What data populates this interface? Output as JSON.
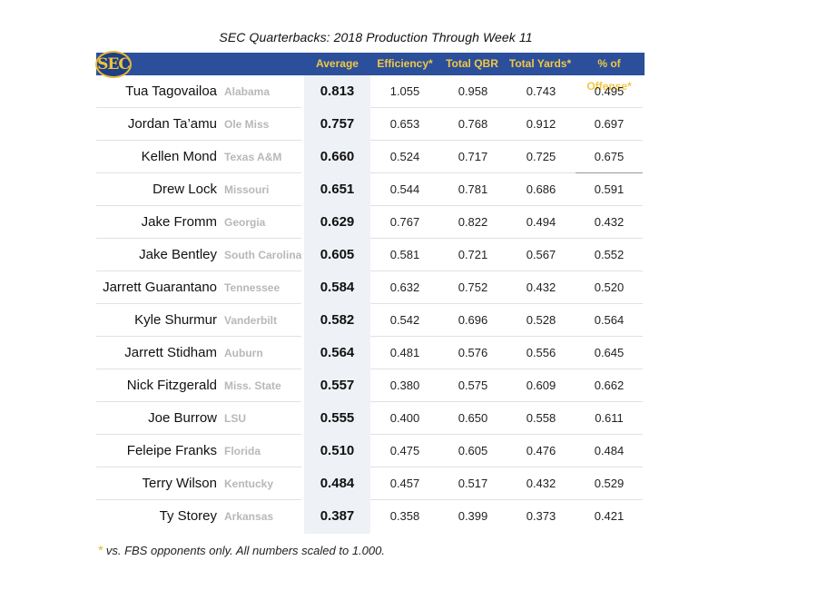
{
  "chart_data": {
    "type": "table",
    "title": "SEC Quarterbacks: 2018 Production Through Week 11",
    "logo_text": "SEC",
    "columns": [
      "Average",
      "Efficiency*",
      "Total QBR",
      "Total Yards*",
      "% of Offense*"
    ],
    "rows": [
      {
        "player": "Tua Tagovailoa",
        "school": "Alabama",
        "average": "0.813",
        "efficiency": "1.055",
        "qbr": "0.958",
        "yards": "0.743",
        "offense": "0.495"
      },
      {
        "player": "Jordan Ta’amu",
        "school": "Ole Miss",
        "average": "0.757",
        "efficiency": "0.653",
        "qbr": "0.768",
        "yards": "0.912",
        "offense": "0.697"
      },
      {
        "player": "Kellen Mond",
        "school": "Texas A&M",
        "average": "0.660",
        "efficiency": "0.524",
        "qbr": "0.717",
        "yards": "0.725",
        "offense": "0.675"
      },
      {
        "player": "Drew Lock",
        "school": "Missouri",
        "average": "0.651",
        "efficiency": "0.544",
        "qbr": "0.781",
        "yards": "0.686",
        "offense": "0.591"
      },
      {
        "player": "Jake Fromm",
        "school": "Georgia",
        "average": "0.629",
        "efficiency": "0.767",
        "qbr": "0.822",
        "yards": "0.494",
        "offense": "0.432"
      },
      {
        "player": "Jake Bentley",
        "school": "South Carolina",
        "average": "0.605",
        "efficiency": "0.581",
        "qbr": "0.721",
        "yards": "0.567",
        "offense": "0.552"
      },
      {
        "player": "Jarrett Guarantano",
        "school": "Tennessee",
        "average": "0.584",
        "efficiency": "0.632",
        "qbr": "0.752",
        "yards": "0.432",
        "offense": "0.520"
      },
      {
        "player": "Kyle Shurmur",
        "school": "Vanderbilt",
        "average": "0.582",
        "efficiency": "0.542",
        "qbr": "0.696",
        "yards": "0.528",
        "offense": "0.564"
      },
      {
        "player": "Jarrett Stidham",
        "school": "Auburn",
        "average": "0.564",
        "efficiency": "0.481",
        "qbr": "0.576",
        "yards": "0.556",
        "offense": "0.645"
      },
      {
        "player": "Nick Fitzgerald",
        "school": "Miss. State",
        "average": "0.557",
        "efficiency": "0.380",
        "qbr": "0.575",
        "yards": "0.609",
        "offense": "0.662"
      },
      {
        "player": "Joe Burrow",
        "school": "LSU",
        "average": "0.555",
        "efficiency": "0.400",
        "qbr": "0.650",
        "yards": "0.558",
        "offense": "0.611"
      },
      {
        "player": "Feleipe Franks",
        "school": "Florida",
        "average": "0.510",
        "efficiency": "0.475",
        "qbr": "0.605",
        "yards": "0.476",
        "offense": "0.484"
      },
      {
        "player": "Terry Wilson",
        "school": "Kentucky",
        "average": "0.484",
        "efficiency": "0.457",
        "qbr": "0.517",
        "yards": "0.432",
        "offense": "0.529"
      },
      {
        "player": "Ty Storey",
        "school": "Arkansas",
        "average": "0.387",
        "efficiency": "0.358",
        "qbr": "0.399",
        "yards": "0.373",
        "offense": "0.421"
      }
    ],
    "footnote_star": "*",
    "footnote": "vs. FBS opponents only. All numbers scaled to 1.000.",
    "colors": {
      "header_bg": "#2b4f9a",
      "header_text": "#f2c744",
      "average_bg": "#eef1f6",
      "school_text": "#b8b8b8"
    }
  }
}
